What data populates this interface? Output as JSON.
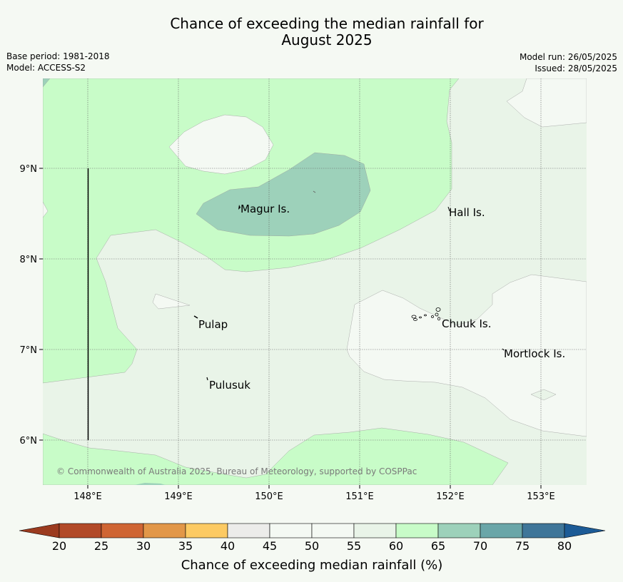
{
  "title_line1": "Chance of exceeding the median rainfall for",
  "title_line2": "August 2025",
  "base_period": "Base period: 1981-2018",
  "model": "Model: ACCESS-S2",
  "model_run": "Model run: 26/05/2025",
  "issued": "Issued: 28/05/2025",
  "map": {
    "lon_ticks": [
      "148°E",
      "149°E",
      "150°E",
      "151°E",
      "152°E",
      "153°E"
    ],
    "lat_ticks": [
      "9°N",
      "8°N",
      "7°N",
      "6°N"
    ],
    "places": {
      "magur": "Magur Is.",
      "hall": "Hall Is.",
      "pulap": "Pulap",
      "chuuk": "Chuuk Is.",
      "mortlock": "Mortlock Is.",
      "pulusuk": "Pulusuk"
    },
    "copyright": "© Commonwealth of Australia 2025, Bureau of Meteorology, supported by COSPPac",
    "colors": {
      "c45_50": "#f4f9f3",
      "c55_60": "#e9f4e8",
      "c60_65": "#c8fcc8",
      "c65_70": "#9dd1ba",
      "c70_75": "#6aa6a8"
    }
  },
  "colorbar": {
    "ticks": [
      "20",
      "25",
      "30",
      "35",
      "40",
      "45",
      "50",
      "55",
      "60",
      "65",
      "70",
      "75",
      "80"
    ],
    "colors": [
      "#b24a28",
      "#cf6533",
      "#e29748",
      "#fcca63",
      "#ececea",
      "#f4f9f3",
      "#f4f9f3",
      "#e9f4e8",
      "#c8fcc8",
      "#9dd1ba",
      "#6aa6a8",
      "#3f7699"
    ],
    "under_color": "#9b3b1f",
    "over_color": "#1c5b96",
    "title": "Chance of exceeding median rainfall (%)"
  }
}
